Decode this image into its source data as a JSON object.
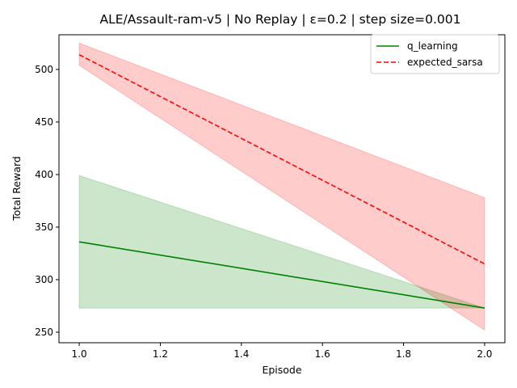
{
  "chart_data": {
    "type": "line",
    "title": "ALE/Assault-ram-v5 | No Replay | ε=0.2 | step size=0.001",
    "xlabel": "Episode",
    "ylabel": "Total Reward",
    "xlim": [
      0.95,
      2.05
    ],
    "ylim": [
      240,
      533
    ],
    "xticks": [
      "1.0",
      "1.2",
      "1.4",
      "1.6",
      "1.8",
      "2.0"
    ],
    "yticks": [
      "250",
      "300",
      "350",
      "400",
      "450",
      "500"
    ],
    "grid": false,
    "legend_position": "top-right",
    "series": [
      {
        "name": "q_learning",
        "color": "#008000",
        "linestyle": "solid",
        "x": [
          1.0,
          2.0
        ],
        "y": [
          336,
          273
        ],
        "band_lower": [
          273,
          273
        ],
        "band_upper": [
          399,
          273
        ],
        "band_color": "#008000"
      },
      {
        "name": "expected_sarsa",
        "color": "#ff0000",
        "linestyle": "dashed",
        "x": [
          1.0,
          2.0
        ],
        "y": [
          514,
          315
        ],
        "band_lower": [
          504,
          252
        ],
        "band_upper": [
          525,
          378
        ],
        "band_color": "#ff0000"
      }
    ]
  }
}
